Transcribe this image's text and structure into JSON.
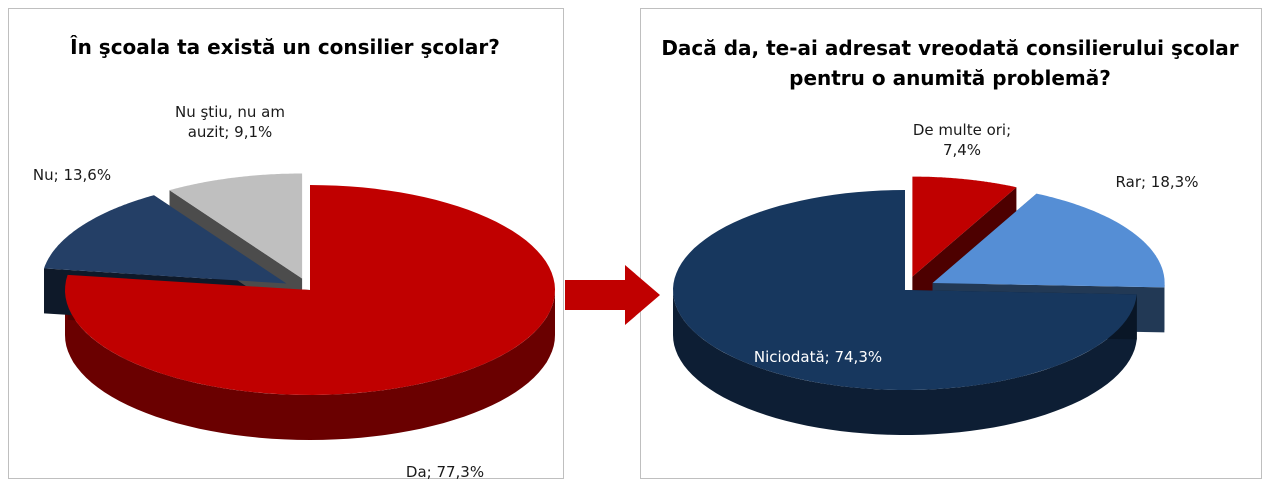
{
  "chart_data": [
    {
      "type": "pie",
      "title": "În şcoala ta există un consilier şcolar?",
      "values": [
        77.3,
        13.6,
        9.1
      ],
      "value_labels": [
        "Da; 77,3%",
        "Nu; 13,6%",
        "Nu ştiu, nu am auzit; 9,1%"
      ],
      "colors": [
        "#c00000",
        "#243f66",
        "#bfbfbf"
      ]
    },
    {
      "type": "pie",
      "title": "Dacă da, te-ai adresat vreodată consilierului şcolar pentru o anumită problemă?",
      "values": [
        7.4,
        18.3,
        74.3
      ],
      "value_labels": [
        "De multe ori; 7,4%",
        "Rar; 18,3%",
        "Niciodată; 74,3%"
      ],
      "colors": [
        "#c00000",
        "#558ed5",
        "#17375e"
      ]
    }
  ]
}
